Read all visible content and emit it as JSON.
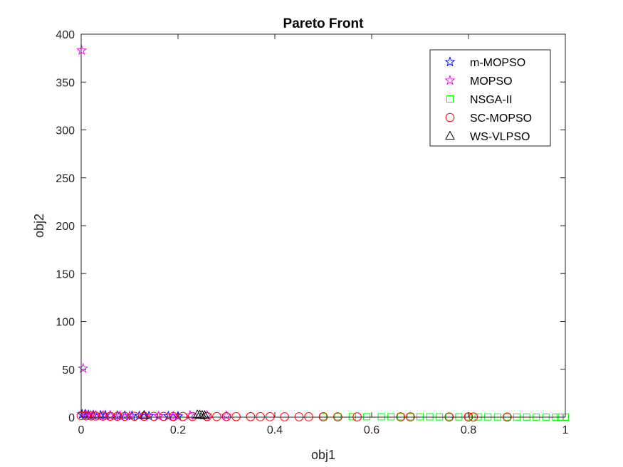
{
  "chart_data": {
    "type": "scatter",
    "title": "Pareto Front",
    "xlabel": "obj1",
    "ylabel": "obj2",
    "xlim": [
      0,
      1
    ],
    "ylim": [
      0,
      400
    ],
    "xticks": [
      0,
      0.2,
      0.4,
      0.6,
      0.8,
      1
    ],
    "xtick_labels": [
      "0",
      "0.2",
      "0.4",
      "0.6",
      "0.8",
      "1"
    ],
    "yticks": [
      0,
      50,
      100,
      150,
      200,
      250,
      300,
      350,
      400
    ],
    "ytick_labels": [
      "0",
      "50",
      "100",
      "150",
      "200",
      "250",
      "300",
      "350",
      "400"
    ],
    "grid": false,
    "legend_position": "top-right",
    "series": [
      {
        "name": "m-MOPSO",
        "marker": "star",
        "color": "#0000ff",
        "points": [
          [
            0.002,
            3.0
          ],
          [
            0.008,
            3.0
          ],
          [
            0.015,
            2.5
          ],
          [
            0.025,
            2.2
          ],
          [
            0.04,
            2.0
          ],
          [
            0.05,
            2.0
          ],
          [
            0.06,
            1.8
          ],
          [
            0.075,
            1.6
          ],
          [
            0.09,
            1.5
          ],
          [
            0.105,
            1.4
          ],
          [
            0.12,
            1.3
          ],
          [
            0.14,
            1.2
          ],
          [
            0.16,
            1.1
          ],
          [
            0.18,
            1.0
          ],
          [
            0.2,
            0.9
          ]
        ]
      },
      {
        "name": "MOPSO",
        "marker": "star",
        "color": "#ff00ff",
        "points": [
          [
            0.001,
            383
          ],
          [
            0.004,
            51
          ],
          [
            0.01,
            2.5
          ],
          [
            0.02,
            2.0
          ],
          [
            0.03,
            1.8
          ],
          [
            0.045,
            1.6
          ],
          [
            0.06,
            1.5
          ],
          [
            0.08,
            1.4
          ],
          [
            0.1,
            1.3
          ],
          [
            0.13,
            1.2
          ],
          [
            0.16,
            1.1
          ],
          [
            0.19,
            1.0
          ],
          [
            0.225,
            2.0
          ],
          [
            0.26,
            1.8
          ],
          [
            0.3,
            1.5
          ]
        ]
      },
      {
        "name": "NSGA-II",
        "marker": "square",
        "color": "#00ff00",
        "points": [
          [
            0.5,
            0.5
          ],
          [
            0.53,
            0.5
          ],
          [
            0.56,
            0.5
          ],
          [
            0.59,
            0.45
          ],
          [
            0.62,
            0.45
          ],
          [
            0.64,
            0.4
          ],
          [
            0.66,
            0.4
          ],
          [
            0.68,
            0.4
          ],
          [
            0.7,
            0.35
          ],
          [
            0.72,
            0.35
          ],
          [
            0.74,
            0.3
          ],
          [
            0.76,
            0.3
          ],
          [
            0.78,
            0.3
          ],
          [
            0.8,
            0.25
          ],
          [
            0.82,
            0.25
          ],
          [
            0.84,
            0.2
          ],
          [
            0.86,
            0.2
          ],
          [
            0.88,
            0.2
          ],
          [
            0.9,
            0.15
          ],
          [
            0.92,
            0.15
          ],
          [
            0.94,
            0.1
          ],
          [
            0.96,
            0.1
          ],
          [
            0.98,
            0.05
          ],
          [
            0.99,
            0.02
          ],
          [
            1.0,
            0.0
          ]
        ]
      },
      {
        "name": "SC-MOPSO",
        "marker": "circle",
        "color": "#ff0000",
        "points": [
          [
            0.0,
            1.5
          ],
          [
            0.01,
            1.4
          ],
          [
            0.02,
            1.3
          ],
          [
            0.03,
            1.2
          ],
          [
            0.045,
            1.1
          ],
          [
            0.06,
            1.0
          ],
          [
            0.075,
            1.0
          ],
          [
            0.09,
            0.9
          ],
          [
            0.11,
            0.9
          ],
          [
            0.13,
            0.85
          ],
          [
            0.15,
            0.8
          ],
          [
            0.17,
            0.8
          ],
          [
            0.19,
            0.75
          ],
          [
            0.21,
            0.7
          ],
          [
            0.23,
            0.7
          ],
          [
            0.26,
            0.65
          ],
          [
            0.28,
            0.6
          ],
          [
            0.3,
            0.6
          ],
          [
            0.32,
            0.55
          ],
          [
            0.35,
            0.55
          ],
          [
            0.37,
            0.5
          ],
          [
            0.39,
            0.5
          ],
          [
            0.42,
            0.45
          ],
          [
            0.45,
            0.45
          ],
          [
            0.47,
            0.4
          ],
          [
            0.5,
            0.4
          ],
          [
            0.53,
            0.35
          ],
          [
            0.57,
            0.35
          ],
          [
            0.66,
            0.3
          ],
          [
            0.68,
            0.3
          ],
          [
            0.76,
            0.25
          ],
          [
            0.8,
            0.2
          ],
          [
            0.81,
            0.2
          ],
          [
            0.88,
            0.15
          ]
        ]
      },
      {
        "name": "WS-VLPSO",
        "marker": "triangle",
        "color": "#000000",
        "points": [
          [
            0.13,
            2.0
          ],
          [
            0.24,
            2.5
          ],
          [
            0.245,
            2.3
          ],
          [
            0.25,
            2.0
          ],
          [
            0.255,
            1.8
          ]
        ]
      }
    ]
  }
}
